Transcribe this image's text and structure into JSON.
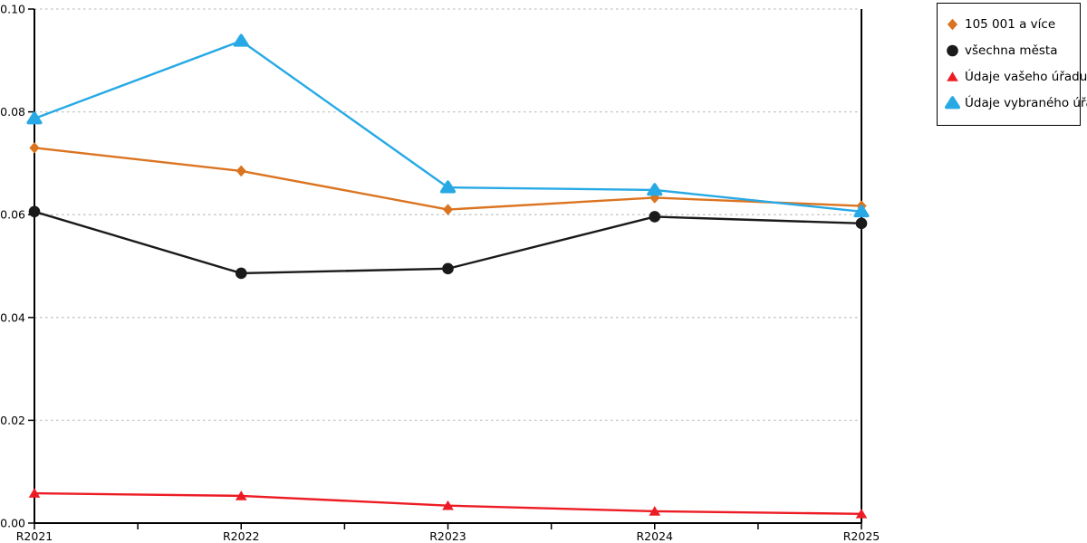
{
  "chart_data": {
    "type": "line",
    "title": "",
    "xlabel": "",
    "ylabel": "",
    "categories": [
      "R2021",
      "R2022",
      "R2023",
      "R2024",
      "R2025"
    ],
    "series": [
      {
        "name": "105 001 a více",
        "marker": "diamond",
        "color": "#DB7420",
        "values": [
          0.073,
          0.0685,
          0.061,
          0.0633,
          0.0617
        ]
      },
      {
        "name": "všechna města",
        "marker": "circle",
        "color": "#1a1a1a",
        "values": [
          0.0606,
          0.0486,
          0.0495,
          0.0596,
          0.0583
        ]
      },
      {
        "name": "Údaje vašeho úřadu",
        "marker": "triangle",
        "color": "#ED1C24",
        "values": [
          0.0058,
          0.0053,
          0.0034,
          0.0023,
          0.0018
        ]
      },
      {
        "name": "Údaje vybraného úřadu",
        "marker": "triangle-round",
        "color": "#27A9E5",
        "values": [
          0.0787,
          0.0938,
          0.0653,
          0.0648,
          0.0606
        ]
      }
    ],
    "ylim": [
      0.0,
      0.1
    ],
    "yticks": [
      0.0,
      0.02,
      0.04,
      0.06,
      0.08,
      0.1
    ],
    "ytick_labels": [
      "0.00",
      "0.02",
      "0.04",
      "0.06",
      "0.08",
      "0.10"
    ],
    "grid": true,
    "gridline_style": "dotted",
    "gridline_color": "#c3c3c3",
    "axis_color": "#000000",
    "legend_position": "top-right"
  }
}
